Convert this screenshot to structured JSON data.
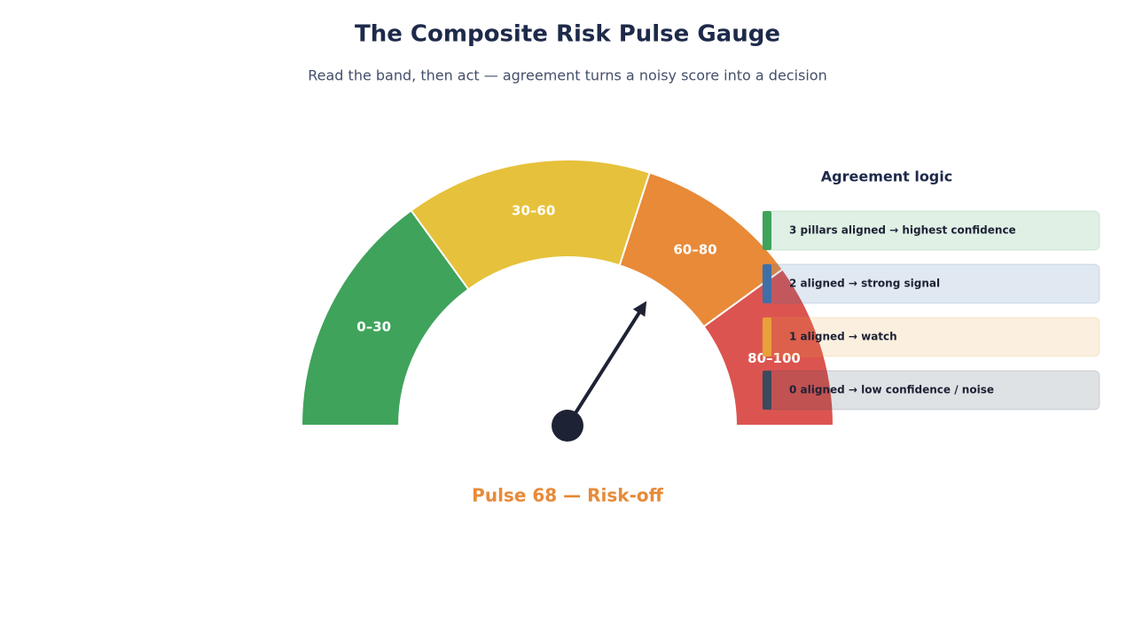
{
  "chart_data": {
    "type": "gauge",
    "title": "The Composite Risk Pulse Gauge",
    "subtitle": "Read the band, then act — agreement turns a noisy score into a decision",
    "bands": [
      {
        "label": "0–30",
        "from": 0,
        "to": 30,
        "color": "#3fa35b"
      },
      {
        "label": "30–60",
        "from": 30,
        "to": 60,
        "color": "#e6c13b"
      },
      {
        "label": "60–80",
        "from": 60,
        "to": 80,
        "color": "#e88a38"
      },
      {
        "label": "80–100",
        "from": 80,
        "to": 100,
        "color": "#dc5450"
      }
    ],
    "value": 68,
    "value_label": "Pulse 68 — Risk-off",
    "needle_color": "#1e2235",
    "panel": {
      "title": "Agreement logic",
      "items": [
        {
          "text": "3 pillars aligned → highest confidence",
          "color": "#3fa35b"
        },
        {
          "text": "2 aligned → strong signal",
          "color": "#3f6fa8"
        },
        {
          "text": "1 aligned → watch",
          "color": "#e8a03a"
        },
        {
          "text": "0 aligned → low confidence / noise",
          "color": "#3b4a5e"
        }
      ]
    }
  }
}
